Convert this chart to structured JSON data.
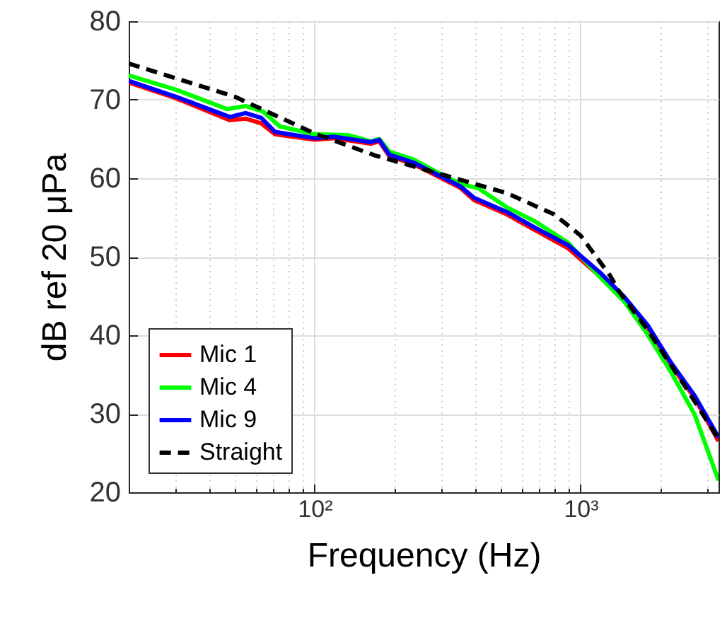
{
  "chart_data": {
    "type": "line",
    "xlabel": "Frequency (Hz)",
    "ylabel": "dB ref 20 μPa",
    "log": "x",
    "xlim": [
      20,
      3300
    ],
    "xticks": [
      {
        "value": 20,
        "label": null
      },
      {
        "value": 30,
        "label": null
      },
      {
        "value": 40,
        "label": null
      },
      {
        "value": 50,
        "label": null
      },
      {
        "value": 60,
        "label": null
      },
      {
        "value": 70,
        "label": null
      },
      {
        "value": 80,
        "label": null
      },
      {
        "value": 90,
        "label": null
      },
      {
        "value": 100,
        "label": "10²"
      },
      {
        "value": 200,
        "label": null
      },
      {
        "value": 300,
        "label": null
      },
      {
        "value": 400,
        "label": null
      },
      {
        "value": 500,
        "label": null
      },
      {
        "value": 600,
        "label": null
      },
      {
        "value": 700,
        "label": null
      },
      {
        "value": 800,
        "label": null
      },
      {
        "value": 900,
        "label": null
      },
      {
        "value": 1000,
        "label": "10³"
      },
      {
        "value": 2000,
        "label": null
      },
      {
        "value": 3000,
        "label": null
      }
    ],
    "ylim": [
      20,
      80
    ],
    "yticks": [
      20,
      30,
      40,
      50,
      60,
      70,
      80
    ],
    "grid": true,
    "legend": "bottom left",
    "series": [
      {
        "name": "Mic 1",
        "color": "#ff0000",
        "x": [
          20,
          30,
          48,
          55,
          63,
          71,
          100,
          118,
          163,
          175,
          191,
          235,
          288,
          352,
          398,
          528,
          674,
          896,
          1191,
          1459,
          1786,
          2188,
          2685,
          3300
        ],
        "values": [
          72.2,
          70.2,
          67.4,
          67.6,
          67.0,
          65.6,
          64.9,
          65.1,
          64.4,
          64.7,
          62.8,
          61.8,
          60.3,
          58.8,
          57.2,
          55.4,
          53.4,
          51.1,
          47.4,
          44.5,
          40.7,
          36.2,
          32.0,
          26.5
        ]
      },
      {
        "name": "Mic 4",
        "color": "#00ff00",
        "x": [
          20,
          30,
          47,
          55,
          64,
          74,
          100,
          133,
          163,
          175,
          191,
          235,
          288,
          352,
          414,
          528,
          674,
          896,
          1191,
          1459,
          1786,
          2188,
          2685,
          3300
        ],
        "values": [
          73.1,
          71.3,
          68.8,
          69.2,
          68.5,
          66.6,
          65.6,
          65.5,
          64.7,
          65.0,
          63.4,
          62.4,
          60.8,
          59.3,
          58.7,
          56.3,
          54.5,
          51.8,
          47.3,
          44.3,
          40.1,
          35.3,
          29.9,
          21.5
        ]
      },
      {
        "name": "Mic 9",
        "color": "#0000ff",
        "x": [
          20,
          30,
          48,
          55,
          63,
          71,
          100,
          118,
          163,
          175,
          191,
          235,
          288,
          352,
          398,
          528,
          674,
          896,
          1191,
          1459,
          1786,
          2188,
          2685,
          3300
        ],
        "values": [
          72.4,
          70.4,
          67.8,
          68.3,
          67.7,
          65.9,
          65.1,
          65.3,
          64.6,
          64.9,
          63.0,
          62.0,
          60.5,
          59.0,
          57.5,
          55.7,
          53.7,
          51.5,
          47.9,
          44.9,
          41.3,
          36.5,
          32.3,
          27.0
        ]
      },
      {
        "name": "Straight",
        "color": "#000000",
        "line_style": "dashed",
        "x": [
          20,
          50,
          100,
          169,
          300,
          528,
          795,
          1000,
          1291,
          1400,
          1786,
          2470,
          3300
        ],
        "values": [
          74.6,
          70.4,
          65.7,
          62.9,
          60.5,
          58.1,
          55.4,
          52.7,
          47.6,
          45.5,
          40.7,
          33.5,
          26.8
        ]
      }
    ]
  }
}
